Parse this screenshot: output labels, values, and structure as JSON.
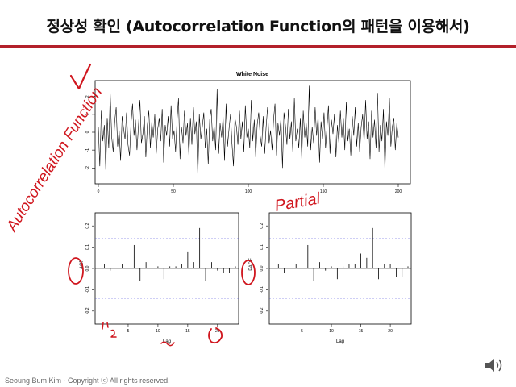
{
  "slide": {
    "title": "정상성 확인 (Autocorrelation Function의 패턴을 이용해서)",
    "footer": "Seoung Bum Kim - Copyright ⓒ All rights reserved.",
    "accent_color": "#b3202a",
    "speaker_icon": "speaker-icon"
  },
  "annotations": {
    "check": "✓",
    "acf_label": "Autocorrelation Function",
    "pacf_label": "Partial"
  },
  "chart_data": [
    {
      "type": "line",
      "title": "White Noise",
      "xlabel": "",
      "ylabel": "",
      "xlim": [
        0,
        200
      ],
      "ylim": [
        -2.8,
        2.8
      ],
      "xticks": [
        0,
        50,
        100,
        150,
        200
      ],
      "yticks": [
        -2,
        -1,
        0,
        1,
        2
      ],
      "y": [
        0.3,
        -1.9,
        1.2,
        -0.5,
        0.4,
        -2.1,
        0.8,
        -0.9,
        2.2,
        -0.3,
        -1.1,
        0.6,
        1.4,
        -0.8,
        0.1,
        -1.6,
        0.9,
        0.2,
        -0.4,
        1.1,
        -0.7,
        -1.3,
        0.5,
        1.6,
        -0.2,
        0.7,
        -1.0,
        0.3,
        1.8,
        -0.6,
        -0.1,
        0.9,
        -1.4,
        0.4,
        1.2,
        -0.9,
        0.6,
        -0.3,
        1.0,
        -1.2,
        0.2,
        0.8,
        -0.5,
        1.3,
        -1.7,
        0.4,
        -0.2,
        0.9,
        -0.8,
        1.5,
        -0.4,
        0.1,
        -1.1,
        0.7,
        1.9,
        -1.5,
        0.3,
        -0.6,
        1.2,
        -0.2,
        0.5,
        -1.3,
        0.8,
        -0.7,
        1.4,
        -0.1,
        0.6,
        -2.5,
        1.0,
        -0.4,
        0.3,
        1.1,
        -0.9,
        0.2,
        -1.8,
        0.7,
        1.3,
        -0.5,
        0.4,
        -1.0,
        2.4,
        -1.2,
        0.5,
        -0.3,
        0.9,
        -1.6,
        1.6,
        -0.8,
        0.2,
        1.0,
        -0.6,
        -1.9,
        0.8,
        0.3,
        -0.7,
        1.2,
        -0.4,
        0.6,
        -1.1,
        1.5,
        -0.3,
        0.2,
        -0.9,
        1.8,
        -0.5,
        0.7,
        -1.4,
        0.4,
        1.1,
        -0.2,
        -0.8,
        0.9,
        -1.2,
        0.3,
        1.4,
        -0.6,
        0.1,
        -1.0,
        0.7,
        1.6,
        -1.3,
        0.5,
        -0.2,
        0.8,
        -2.0,
        1.1,
        0.4,
        -0.7,
        1.3,
        -0.4,
        0.6,
        -1.1,
        1.9,
        -0.5,
        0.2,
        -0.9,
        0.8,
        -1.5,
        1.2,
        -0.3,
        0.5,
        -0.8,
        2.6,
        -1.0,
        0.3,
        -0.6,
        1.4,
        -0.2,
        0.9,
        -1.7,
        0.6,
        -0.4,
        1.1,
        -0.9,
        0.3,
        1.5,
        -1.2,
        0.7,
        -0.1,
        1.0,
        -1.4,
        0.4,
        -0.6,
        1.2,
        -0.3,
        0.8,
        -1.0,
        1.7,
        -0.5,
        0.2,
        -1.3,
        0.9,
        -0.2,
        1.4,
        -0.8,
        0.5,
        -1.1,
        0.3,
        1.0,
        -0.6,
        1.8,
        -0.4,
        0.6,
        -1.5,
        1.2,
        -0.3,
        0.7,
        -0.9,
        2.2,
        -1.1,
        0.4,
        -0.5,
        1.3,
        -2.2,
        0.6,
        -0.2,
        1.9,
        -0.8,
        0.3,
        0.8,
        -1.0,
        0.5,
        -0.3
      ]
    },
    {
      "type": "bar",
      "title": "",
      "xlabel": "Lag",
      "ylabel": "ACF",
      "xlim": [
        0,
        23
      ],
      "ylim": [
        -0.25,
        0.25
      ],
      "xticks": [
        5,
        10,
        15,
        20
      ],
      "yticks": [
        -0.2,
        -0.1,
        0.0,
        0.1,
        0.2
      ],
      "ci": 0.14,
      "x": [
        1,
        2,
        3,
        4,
        5,
        6,
        7,
        8,
        9,
        10,
        11,
        12,
        13,
        14,
        15,
        16,
        17,
        18,
        19,
        20,
        21,
        22,
        23
      ],
      "values": [
        0.02,
        -0.01,
        0.0,
        0.02,
        0.0,
        0.11,
        -0.06,
        0.03,
        -0.02,
        0.01,
        -0.05,
        0.01,
        0.01,
        0.02,
        0.08,
        0.03,
        0.19,
        -0.06,
        0.03,
        -0.01,
        -0.02,
        -0.02,
        0.01
      ]
    },
    {
      "type": "bar",
      "title": "",
      "xlabel": "Lag",
      "ylabel": "PACF",
      "xlim": [
        0,
        23
      ],
      "ylim": [
        -0.25,
        0.25
      ],
      "xticks": [
        5,
        10,
        15,
        20
      ],
      "yticks": [
        -0.2,
        -0.1,
        0.0,
        0.1,
        0.2
      ],
      "ci": 0.14,
      "x": [
        1,
        2,
        3,
        4,
        5,
        6,
        7,
        8,
        9,
        10,
        11,
        12,
        13,
        14,
        15,
        16,
        17,
        18,
        19,
        20,
        21,
        22,
        23
      ],
      "values": [
        0.02,
        -0.02,
        0.0,
        0.02,
        0.0,
        0.11,
        -0.06,
        0.03,
        -0.01,
        0.01,
        -0.05,
        0.01,
        0.02,
        0.02,
        0.07,
        0.05,
        0.19,
        -0.05,
        0.02,
        0.02,
        -0.04,
        -0.04,
        0.01
      ]
    }
  ]
}
